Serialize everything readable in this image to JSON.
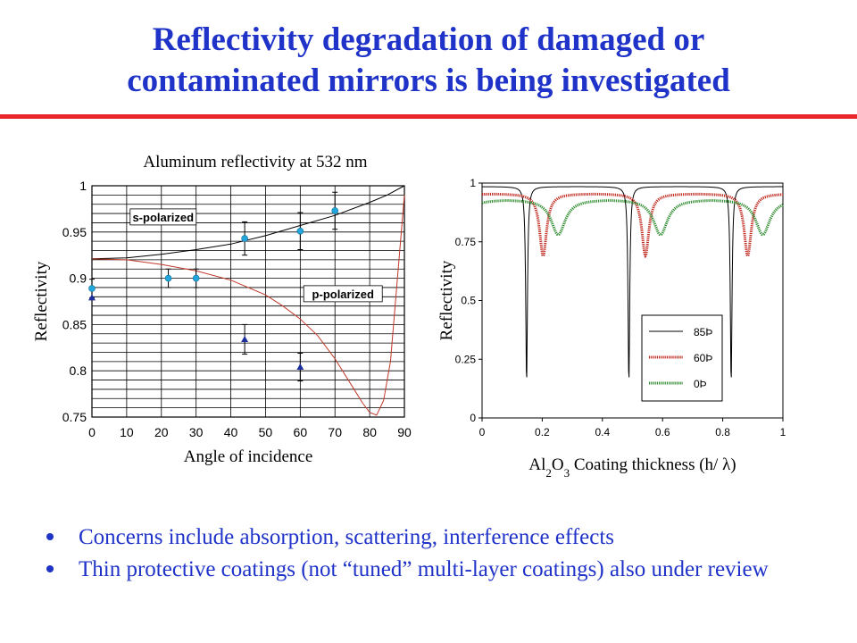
{
  "slide": {
    "title_line1": "Reflectivity degradation of damaged or",
    "title_line2": "contaminated mirrors is being investigated",
    "bullets": [
      "Concerns include absorption, scattering, interference effects",
      "Thin protective coatings (not “tuned” multi-layer coatings) also under review"
    ],
    "colors": {
      "title": "#1f33c9",
      "rule": "#e8262b",
      "bullet_text": "#1f33c9"
    }
  },
  "chart_data": [
    {
      "type": "line",
      "title": "Aluminum reflectivity at 532 nm",
      "xlabel": "Angle of incidence",
      "ylabel": "Reflectivity",
      "xlim": [
        0,
        90
      ],
      "ylim": [
        0.75,
        1.0
      ],
      "xticks": [
        "0",
        "10",
        "20",
        "30",
        "40",
        "50",
        "60",
        "70",
        "80",
        "90"
      ],
      "yticks": [
        "0.75",
        "0.8",
        "0.85",
        "0.9",
        "0.95",
        "1"
      ],
      "grid": true,
      "annotations": [
        "s-polarized",
        "p-polarized"
      ],
      "series": [
        {
          "label": "s-polarized",
          "color": "#000000",
          "x": [
            0,
            10,
            20,
            30,
            40,
            50,
            60,
            70,
            80,
            85,
            90
          ],
          "y": [
            0.921,
            0.922,
            0.926,
            0.931,
            0.937,
            0.946,
            0.957,
            0.968,
            0.982,
            0.99,
            1.0
          ]
        },
        {
          "label": "p-polarized",
          "color": "#c0392b",
          "x": [
            0,
            10,
            20,
            30,
            40,
            50,
            55,
            60,
            65,
            70,
            75,
            78,
            80,
            82,
            84,
            86,
            88,
            90
          ],
          "y": [
            0.921,
            0.92,
            0.915,
            0.908,
            0.898,
            0.882,
            0.87,
            0.856,
            0.838,
            0.813,
            0.783,
            0.765,
            0.755,
            0.752,
            0.768,
            0.81,
            0.9,
            0.99
          ]
        }
      ],
      "measurements": [
        {
          "marker": "circle",
          "color": "#22a6dc",
          "x": [
            0,
            22,
            30,
            44,
            60,
            70
          ],
          "y": [
            0.889,
            0.9,
            0.9,
            0.943,
            0.951,
            0.973
          ],
          "err": [
            0.01,
            0.01,
            0.01,
            0.018,
            0.02,
            0.02
          ]
        },
        {
          "marker": "triangle",
          "color": "#1d2f9e",
          "x": [
            0,
            44,
            60
          ],
          "y": [
            0.879,
            0.834,
            0.804
          ],
          "err": [
            0,
            0.016,
            0.015
          ]
        }
      ]
    },
    {
      "type": "line",
      "xlabel_parts": [
        "Al",
        "2",
        "O",
        "3",
        " Coating thickness (h/ λ)"
      ],
      "ylabel": "Reflectivity",
      "xlim": [
        0,
        1
      ],
      "ylim": [
        0,
        1
      ],
      "xticks": [
        "0",
        "0.2",
        "0.4",
        "0.6",
        "0.8",
        "1"
      ],
      "yticks": [
        "0",
        "0.25",
        "0.5",
        "0.75",
        "1"
      ],
      "grid": false,
      "legend_position": "lower-middle",
      "series": [
        {
          "name": "85Þ",
          "color": "#000000",
          "style": "thin",
          "base": 0.985,
          "amp": 0.835,
          "width": 5,
          "phase": 0
        },
        {
          "name": "60Þ",
          "color": "#c0271d",
          "style": "thick",
          "base": 0.955,
          "amp": 0.265,
          "width": 1.2,
          "phase": 0.055
        },
        {
          "name": "0Þ",
          "color": "#2e8b2e",
          "style": "thick",
          "base": 0.93,
          "amp": 0.15,
          "width": 0.6,
          "phase": 0.105
        }
      ]
    }
  ]
}
